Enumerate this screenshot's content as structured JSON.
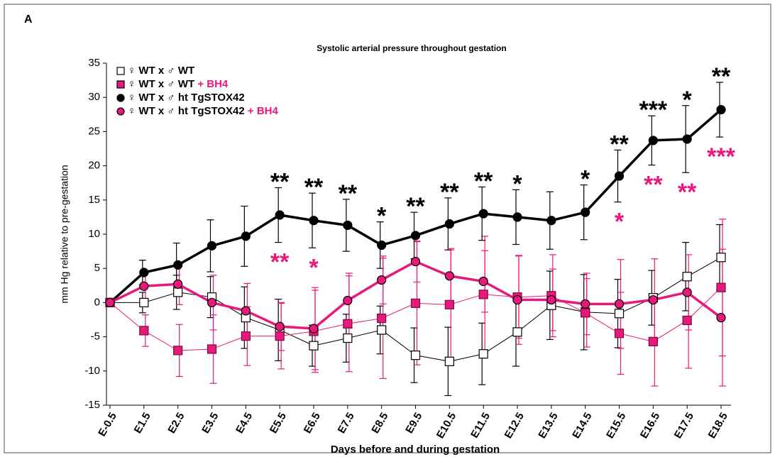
{
  "panel_label": "A",
  "chart_data": {
    "type": "line",
    "title": "Systolic arterial pressure throughout gestation",
    "x_label": "Days before and during gestation",
    "y_label": "mm Hg relative to pre-gestation",
    "categories": [
      "E-0.5",
      "E1.5",
      "E2.5",
      "E3.5",
      "E4.5",
      "E5.5",
      "E6.5",
      "E7.5",
      "E8.5",
      "E9.5",
      "E10.5",
      "E11.5",
      "E12.5",
      "E13.5",
      "E14.5",
      "E15.5",
      "E16.5",
      "E17.5",
      "E18.5"
    ],
    "ylim": [
      -15,
      35
    ],
    "yticks": [
      -15,
      -10,
      -5,
      0,
      5,
      10,
      15,
      20,
      25,
      30,
      35
    ],
    "legend": "upper left",
    "series": [
      {
        "name": "♀ WT x ♂ WT",
        "color": "#000000",
        "marker": "square",
        "marker_fill": "#ffffff",
        "line_width": 1,
        "values": [
          0,
          0,
          1.5,
          0.8,
          -2.2,
          -4.0,
          -6.3,
          -5.2,
          -4.0,
          -7.7,
          -8.6,
          -7.5,
          -4.3,
          -0.4,
          -1.4,
          -1.6,
          0.7,
          3.8,
          6.6
        ],
        "errors": [
          0,
          1.5,
          2.5,
          3,
          4.5,
          4.5,
          3,
          3.5,
          3.5,
          4,
          5,
          4.5,
          5,
          5,
          5.5,
          5,
          4,
          5,
          4.8
        ]
      },
      {
        "name": "♀ WT x ♂ WT",
        "treatment": "+ BH4",
        "color": "#e8197d",
        "marker": "square",
        "marker_fill": "#e8197d",
        "line_width": 1,
        "values": [
          0,
          -4.1,
          -7.0,
          -6.8,
          -4.9,
          -4.9,
          -4.2,
          -3.1,
          -2.3,
          -0.1,
          -0.3,
          1.2,
          0.8,
          1.0,
          -1.5,
          -4.5,
          -5.7,
          -2.6,
          2.2
        ],
        "errors": [
          0,
          2.3,
          3.8,
          5,
          4.3,
          4.8,
          6,
          7,
          8.8,
          9,
          8,
          8.5,
          6,
          6,
          5,
          6,
          6.5,
          7,
          10
        ]
      },
      {
        "name": "♀ WT x ♂ ht TgSTOX42",
        "color": "#000000",
        "marker": "circle",
        "marker_fill": "#000000",
        "line_width": 3.5,
        "values": [
          0,
          4.4,
          5.5,
          8.3,
          9.7,
          12.8,
          12.0,
          11.3,
          8.4,
          9.8,
          11.5,
          13.0,
          12.5,
          12.0,
          13.2,
          18.5,
          23.7,
          23.9,
          28.2
        ],
        "errors": [
          0,
          1.8,
          3.2,
          3.8,
          4.4,
          4.0,
          4.0,
          3.8,
          3.4,
          3.4,
          3.8,
          3.9,
          4.0,
          4.2,
          4.0,
          3.8,
          3.6,
          4.9,
          4.0
        ]
      },
      {
        "name": "♀ WT x ♂ ht TgSTOX42",
        "treatment": "+ BH4",
        "color": "#e8197d",
        "marker": "circle",
        "marker_fill": "#e8197d",
        "line_width": 3.5,
        "values": [
          0,
          2.4,
          2.7,
          0,
          -1.2,
          -3.5,
          -3.8,
          0.3,
          3.3,
          6.0,
          3.9,
          3.1,
          0.4,
          0.4,
          -0.2,
          -0.2,
          0.4,
          1.5,
          -2.2
        ],
        "errors": [
          0,
          2,
          3,
          4,
          4,
          3.5,
          6,
          4,
          3.5,
          3,
          4,
          4.5,
          6.5,
          4.5,
          4.5,
          6.5,
          6,
          5.5,
          10
        ]
      }
    ],
    "annotations": [
      {
        "category": "E5.5",
        "text": "**",
        "position": "above"
      },
      {
        "category": "E6.5",
        "text": "**",
        "position": "above"
      },
      {
        "category": "E7.5",
        "text": "**",
        "position": "above"
      },
      {
        "category": "E8.5",
        "text": "*",
        "position": "above"
      },
      {
        "category": "E9.5",
        "text": "**",
        "position": "above"
      },
      {
        "category": "E10.5",
        "text": "**",
        "position": "above"
      },
      {
        "category": "E11.5",
        "text": "**",
        "position": "above"
      },
      {
        "category": "E12.5",
        "text": "*",
        "position": "above"
      },
      {
        "category": "E14.5",
        "text": "*",
        "position": "above"
      },
      {
        "category": "E15.5",
        "text": "**",
        "position": "above"
      },
      {
        "category": "E16.5",
        "text": "***",
        "position": "above"
      },
      {
        "category": "E17.5",
        "text": "*",
        "position": "above"
      },
      {
        "category": "E18.5",
        "text": "**",
        "position": "above"
      },
      {
        "category": "E5.5",
        "text": "**",
        "position": "below"
      },
      {
        "category": "E6.5",
        "text": "*",
        "position": "below"
      },
      {
        "category": "E15.5",
        "text": "*",
        "position": "below"
      },
      {
        "category": "E16.5",
        "text": "**",
        "position": "below"
      },
      {
        "category": "E17.5",
        "text": "**",
        "position": "below"
      },
      {
        "category": "E18.5",
        "text": "***",
        "position": "below"
      }
    ]
  }
}
